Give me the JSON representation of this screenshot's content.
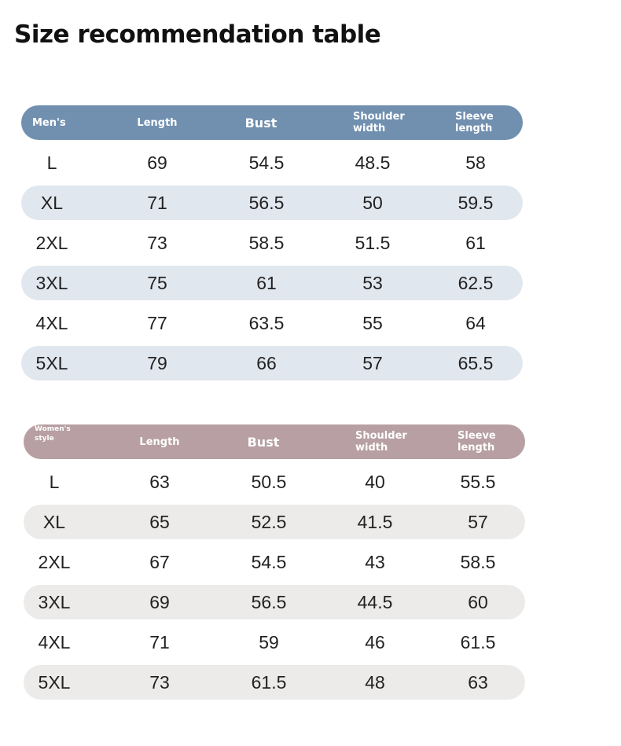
{
  "title": "Size recommendation table",
  "colors": {
    "men_header": "#7190b0",
    "men_stripe": "#e1e7ef",
    "women_header": "#b79fa3",
    "women_stripe": "#ecebea"
  },
  "men": {
    "header": {
      "label": "Men's",
      "length": "Length",
      "bust": "Bust",
      "shoulder_1": "Shoulder",
      "shoulder_2": "width",
      "sleeve_1": "Sleeve",
      "sleeve_2": "length"
    },
    "rows": [
      {
        "size": "L",
        "length": "69",
        "bust": "54.5",
        "shoulder": "48.5",
        "sleeve": "58"
      },
      {
        "size": "XL",
        "length": "71",
        "bust": "56.5",
        "shoulder": "50",
        "sleeve": "59.5"
      },
      {
        "size": "2XL",
        "length": "73",
        "bust": "58.5",
        "shoulder": "51.5",
        "sleeve": "61"
      },
      {
        "size": "3XL",
        "length": "75",
        "bust": "61",
        "shoulder": "53",
        "sleeve": "62.5"
      },
      {
        "size": "4XL",
        "length": "77",
        "bust": "63.5",
        "shoulder": "55",
        "sleeve": "64"
      },
      {
        "size": "5XL",
        "length": "79",
        "bust": "66",
        "shoulder": "57",
        "sleeve": "65.5"
      }
    ]
  },
  "women": {
    "header": {
      "label_1": "Women's",
      "label_2": "style",
      "length": "Length",
      "bust": "Bust",
      "shoulder_1": "Shoulder",
      "shoulder_2": "width",
      "sleeve_1": "Sleeve",
      "sleeve_2": "length"
    },
    "rows": [
      {
        "size": "L",
        "length": "63",
        "bust": "50.5",
        "shoulder": "40",
        "sleeve": "55.5"
      },
      {
        "size": "XL",
        "length": "65",
        "bust": "52.5",
        "shoulder": "41.5",
        "sleeve": "57"
      },
      {
        "size": "2XL",
        "length": "67",
        "bust": "54.5",
        "shoulder": "43",
        "sleeve": "58.5"
      },
      {
        "size": "3XL",
        "length": "69",
        "bust": "56.5",
        "shoulder": "44.5",
        "sleeve": "60"
      },
      {
        "size": "4XL",
        "length": "71",
        "bust": "59",
        "shoulder": "46",
        "sleeve": "61.5"
      },
      {
        "size": "5XL",
        "length": "73",
        "bust": "61.5",
        "shoulder": "48",
        "sleeve": "63"
      }
    ]
  }
}
